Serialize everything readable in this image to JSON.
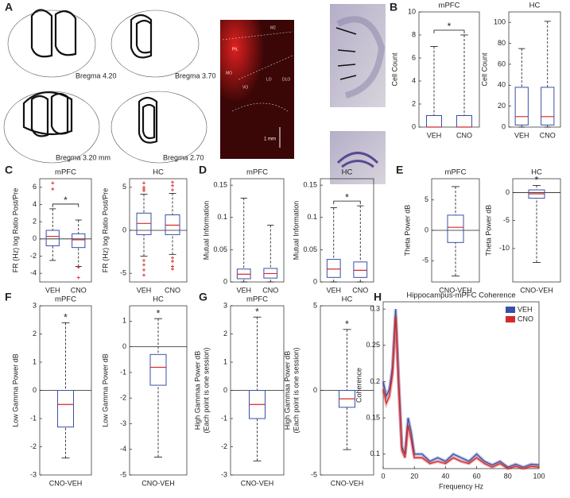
{
  "histology": {
    "panel": "A",
    "sections": [
      "Bregma 4.20",
      "Bregma 3.70",
      "Bregma 3.20 mm",
      "Bregma 2.70"
    ],
    "regions": [
      "M2",
      "PrL",
      "MO",
      "VO",
      "LO",
      "DLO"
    ],
    "scale_bar": "1 mm"
  },
  "chart_data": [
    {
      "type": "box",
      "panel": "B",
      "title": "mPFC",
      "ylabel": "Cell Count",
      "categories": [
        "VEH",
        "CNO"
      ],
      "boxes": [
        {
          "whisker_low": 0,
          "q1": 0,
          "median": 0,
          "q3": 1,
          "whisker_high": 7
        },
        {
          "whisker_low": 0,
          "q1": 0,
          "median": 0,
          "q3": 1,
          "whisker_high": 8
        }
      ],
      "ylim": [
        0,
        10
      ],
      "yticks": [
        0,
        2,
        4,
        6,
        8,
        10
      ],
      "significance": "*",
      "bracket": true
    },
    {
      "type": "box",
      "title": "HC",
      "ylabel": "Cell Count",
      "categories": [
        "VEH",
        "CNO"
      ],
      "boxes": [
        {
          "whisker_low": 0,
          "q1": 2,
          "median": 10,
          "q3": 38,
          "whisker_high": 75
        },
        {
          "whisker_low": 0,
          "q1": 2,
          "median": 10,
          "q3": 38,
          "whisker_high": 101
        }
      ],
      "ylim": [
        0,
        110
      ],
      "yticks": [
        0,
        20,
        40,
        60,
        80,
        100
      ]
    },
    {
      "type": "box",
      "panel": "C",
      "title": "mPFC",
      "ylabel": "FR (Hz) log Ratio Post/Pre",
      "categories": [
        "VEH",
        "CNO"
      ],
      "boxes": [
        {
          "whisker_low": -2.5,
          "q1": -0.8,
          "median": 0.3,
          "q3": 1,
          "whisker_high": 3.5,
          "outliers": [
            6.5,
            5.8
          ]
        },
        {
          "whisker_low": -3.2,
          "q1": -1,
          "median": -0.1,
          "q3": 0.6,
          "whisker_high": 2.2,
          "outliers": [
            -3.3,
            -4.5
          ]
        }
      ],
      "ylim": [
        -5,
        7
      ],
      "yticks": [
        -4,
        -2,
        0,
        2,
        4,
        6
      ],
      "zero_line": true,
      "significance": "*",
      "bracket": true
    },
    {
      "type": "box",
      "title": "HC",
      "ylabel": "FR (Hz) log Ratio Post/Pre",
      "categories": [
        "VEH",
        "CNO"
      ],
      "boxes": [
        {
          "whisker_low": -3,
          "q1": -0.5,
          "median": 0.8,
          "q3": 2,
          "whisker_high": 4.2,
          "outliers": [
            5.5,
            5,
            4.6,
            4.8,
            -3.5,
            -4,
            -4.6,
            -5.2
          ]
        },
        {
          "whisker_low": -2.8,
          "q1": -0.5,
          "median": 0.6,
          "q3": 1.8,
          "whisker_high": 4.3,
          "outliers": [
            5.6,
            5.2,
            4.7,
            -3.2,
            -3.6,
            -4.2,
            -4.5
          ]
        }
      ],
      "ylim": [
        -6,
        6
      ],
      "yticks": [
        -5,
        0,
        5
      ],
      "zero_line": true
    },
    {
      "type": "box",
      "panel": "D",
      "title": "mPFC",
      "ylabel": "Mutual Information",
      "categories": [
        "VEH",
        "CNO"
      ],
      "boxes": [
        {
          "whisker_low": 0,
          "q1": 0.005,
          "median": 0.012,
          "q3": 0.02,
          "whisker_high": 0.13
        },
        {
          "whisker_low": 0,
          "q1": 0.006,
          "median": 0.013,
          "q3": 0.021,
          "whisker_high": 0.088
        }
      ],
      "ylim": [
        0,
        0.16
      ],
      "yticks": [
        0,
        0.05,
        0.1,
        0.15
      ]
    },
    {
      "type": "box",
      "title": "HC",
      "ylabel": "Mutual Information",
      "categories": [
        "VEH",
        "CNO"
      ],
      "boxes": [
        {
          "whisker_low": 0,
          "q1": 0.007,
          "median": 0.02,
          "q3": 0.035,
          "whisker_high": 0.115
        },
        {
          "whisker_low": 0,
          "q1": 0.007,
          "median": 0.018,
          "q3": 0.031,
          "whisker_high": 0.118
        }
      ],
      "ylim": [
        0,
        0.16
      ],
      "yticks": [
        0,
        0.05,
        0.1,
        0.15
      ],
      "significance": "*",
      "bracket": true
    },
    {
      "type": "box",
      "panel": "E",
      "title": "mPFC",
      "ylabel": "Theta Power dB",
      "categories": [
        "CNO-VEH"
      ],
      "boxes": [
        {
          "whisker_low": -7.5,
          "q1": -2,
          "median": 0.5,
          "q3": 2.5,
          "whisker_high": 7.2
        }
      ],
      "ylim": [
        -8.5,
        8.5
      ],
      "yticks": [
        -5,
        0,
        5
      ],
      "zero_line": true
    },
    {
      "type": "box",
      "title": "HC",
      "ylabel": "Theta Power dB",
      "categories": [
        "CNO-VEH"
      ],
      "boxes": [
        {
          "whisker_low": -12.5,
          "q1": -1,
          "median": -0.2,
          "q3": 0.5,
          "whisker_high": 1.3
        }
      ],
      "ylim": [
        -16,
        2.5
      ],
      "yticks": [
        -10,
        -5,
        0
      ],
      "zero_line": true,
      "significance": "*"
    },
    {
      "type": "box",
      "panel": "F",
      "title": "mPFC",
      "ylabel": "Low Gamma Power dB",
      "categories": [
        "CNO-VEH"
      ],
      "boxes": [
        {
          "whisker_low": -2.4,
          "q1": -1.3,
          "median": -0.5,
          "q3": 0,
          "whisker_high": 2.4
        }
      ],
      "ylim": [
        -3,
        3
      ],
      "yticks": [
        -3,
        -2,
        -1,
        0,
        1,
        2,
        3
      ],
      "zero_line": true,
      "significance": "*"
    },
    {
      "type": "box",
      "title": "HC",
      "ylabel": "Low Gamma Power dB",
      "categories": [
        "CNO-VEH"
      ],
      "boxes": [
        {
          "whisker_low": -4.3,
          "q1": -1.5,
          "median": -0.8,
          "q3": -0.3,
          "whisker_high": 1.1
        }
      ],
      "ylim": [
        -5,
        1.6
      ],
      "yticks": [
        -5,
        -4,
        -3,
        -2,
        -1,
        0,
        1
      ],
      "zero_line": true,
      "significance": "*"
    },
    {
      "type": "box",
      "panel": "G",
      "title": "mPFC",
      "ylabel": [
        "High Gammaa Power dB",
        "(Each point is one session)"
      ],
      "categories": [
        "CNO-VEH"
      ],
      "boxes": [
        {
          "whisker_low": -2.5,
          "q1": -1,
          "median": -0.5,
          "q3": 0,
          "whisker_high": 2.6
        }
      ],
      "ylim": [
        -3,
        3
      ],
      "yticks": [
        -3,
        -2,
        -1,
        0,
        1,
        2,
        3
      ],
      "zero_line": true,
      "significance": "*"
    },
    {
      "type": "box",
      "title": "HC",
      "ylabel": [
        "High Gammaa Power dB",
        "(Each point is one session)"
      ],
      "categories": [
        "CNO-VEH"
      ],
      "boxes": [
        {
          "whisker_low": -3.5,
          "q1": -1,
          "median": -0.5,
          "q3": 0,
          "whisker_high": 3.6
        }
      ],
      "ylim": [
        -5,
        5
      ],
      "yticks": [
        -5,
        0,
        5
      ],
      "zero_line": true,
      "significance": "*"
    },
    {
      "type": "line",
      "panel": "H",
      "title": "Hippocampus-mPFC Coherence",
      "xlabel": "Frequency Hz",
      "ylabel": "Coherence",
      "x": [
        0,
        2,
        4,
        6,
        8,
        10,
        12,
        14,
        16,
        18,
        20,
        25,
        30,
        35,
        40,
        45,
        50,
        55,
        60,
        65,
        70,
        75,
        80,
        85,
        90,
        95,
        100
      ],
      "series": [
        {
          "name": "VEH",
          "color": "#3a4fa8",
          "values": [
            0.2,
            0.18,
            0.19,
            0.22,
            0.3,
            0.2,
            0.11,
            0.1,
            0.15,
            0.13,
            0.1,
            0.1,
            0.09,
            0.095,
            0.09,
            0.1,
            0.095,
            0.09,
            0.1,
            0.09,
            0.085,
            0.09,
            0.082,
            0.086,
            0.082,
            0.086,
            0.085
          ]
        },
        {
          "name": "CNO",
          "color": "#d42a2a",
          "values": [
            0.19,
            0.17,
            0.18,
            0.21,
            0.29,
            0.19,
            0.105,
            0.095,
            0.14,
            0.12,
            0.095,
            0.095,
            0.087,
            0.09,
            0.087,
            0.095,
            0.09,
            0.087,
            0.095,
            0.087,
            0.082,
            0.087,
            0.08,
            0.083,
            0.08,
            0.083,
            0.082
          ]
        }
      ],
      "xlim": [
        0,
        100
      ],
      "xticks": [
        0,
        20,
        40,
        60,
        80,
        100
      ],
      "ylim": [
        0.08,
        0.31
      ],
      "yticks": [
        0.1,
        0.15,
        0.2,
        0.25,
        0.3
      ],
      "legend": "top-right"
    }
  ]
}
